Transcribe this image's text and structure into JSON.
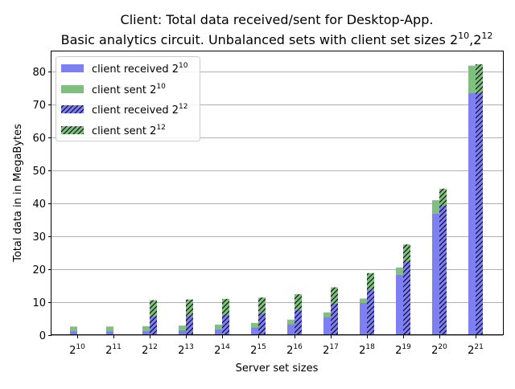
{
  "chart_data": {
    "type": "bar",
    "title_line1": "Client: Total data received/sent for Desktop-App.",
    "title_line2_prefix": "Basic analytics circuit. Unbalanced sets with client set sizes 2",
    "title_line2_exp1": "10",
    "title_line2_sep": ",2",
    "title_line2_exp2": "12",
    "xlabel": "Server set sizes",
    "ylabel": "Total data in in MegaBytes",
    "ylim": [
      0,
      86
    ],
    "yticks": [
      0,
      10,
      20,
      30,
      40,
      50,
      60,
      70,
      80
    ],
    "grid": "horizontal",
    "legend_position": "top-left",
    "categories": [
      {
        "base": "2",
        "exp": "10"
      },
      {
        "base": "2",
        "exp": "11"
      },
      {
        "base": "2",
        "exp": "12"
      },
      {
        "base": "2",
        "exp": "13"
      },
      {
        "base": "2",
        "exp": "14"
      },
      {
        "base": "2",
        "exp": "15"
      },
      {
        "base": "2",
        "exp": "16"
      },
      {
        "base": "2",
        "exp": "17"
      },
      {
        "base": "2",
        "exp": "18"
      },
      {
        "base": "2",
        "exp": "19"
      },
      {
        "base": "2",
        "exp": "20"
      },
      {
        "base": "2",
        "exp": "21"
      }
    ],
    "groups": [
      {
        "client_set_size": "2^10",
        "received": {
          "name": "client received 2",
          "exp": "10",
          "values": [
            1.2,
            1.2,
            1.3,
            1.5,
            1.8,
            2.3,
            3.3,
            5.5,
            9.8,
            18.3,
            36.8,
            73.5
          ]
        },
        "sent": {
          "name": "client sent 2",
          "exp": "10",
          "values": [
            1.4,
            1.4,
            1.4,
            1.4,
            1.4,
            1.4,
            1.4,
            1.4,
            1.3,
            2.2,
            4.1,
            8.2
          ]
        }
      },
      {
        "client_set_size": "2^12",
        "received": {
          "name": "client received 2",
          "exp": "12",
          "values": [
            null,
            null,
            5.8,
            6.0,
            6.2,
            6.6,
            7.6,
            9.6,
            13.8,
            22.3,
            39.2,
            73.5
          ]
        },
        "sent": {
          "name": "client sent 2",
          "exp": "12",
          "values": [
            null,
            null,
            4.8,
            4.8,
            4.8,
            4.8,
            4.8,
            4.9,
            5.0,
            5.2,
            5.2,
            8.6
          ]
        }
      }
    ],
    "colors": {
      "received": "#7f7ff4",
      "sent": "#7fbf7f",
      "hatch": "#000000",
      "grid": "#b0b0b0"
    }
  }
}
